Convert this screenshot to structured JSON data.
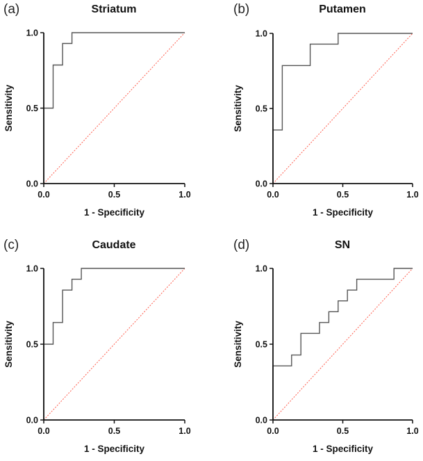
{
  "chart_data": [
    {
      "type": "line",
      "panel_label": "(a)",
      "title": "Striatum",
      "xlabel": "1 - Specificity",
      "ylabel": "Sensitivity",
      "xlim": [
        0,
        1
      ],
      "ylim": [
        0,
        1
      ],
      "xticks": [
        "0.0",
        "0.5",
        "1.0"
      ],
      "yticks": [
        "0.0",
        "0.5",
        "1.0"
      ],
      "series": [
        {
          "name": "ROC",
          "style": "step",
          "color": "#555555",
          "x": [
            0,
            0,
            0.0667,
            0.0667,
            0.1333,
            0.1333,
            0.2,
            0.2,
            1.0
          ],
          "y": [
            0,
            0.5,
            0.5,
            0.7857,
            0.7857,
            0.9286,
            0.9286,
            1.0,
            1.0
          ]
        },
        {
          "name": "Reference",
          "style": "dotted",
          "color": "#ff5a4a",
          "x": [
            0,
            1
          ],
          "y": [
            0,
            1
          ]
        }
      ]
    },
    {
      "type": "line",
      "panel_label": "(b)",
      "title": "Putamen",
      "xlabel": "1 - Specificity",
      "ylabel": "Sensitivity",
      "xlim": [
        0,
        1
      ],
      "ylim": [
        0,
        1
      ],
      "xticks": [
        "0.0",
        "0.5",
        "1.0"
      ],
      "yticks": [
        "0.0",
        "0.5",
        "1.0"
      ],
      "series": [
        {
          "name": "ROC",
          "style": "step",
          "color": "#555555",
          "x": [
            0,
            0,
            0.0667,
            0.0667,
            0.2667,
            0.2667,
            0.4667,
            0.4667,
            1.0
          ],
          "y": [
            0,
            0.3571,
            0.3571,
            0.7857,
            0.7857,
            0.9286,
            0.9286,
            1.0,
            1.0
          ]
        },
        {
          "name": "Reference",
          "style": "dotted",
          "color": "#ff5a4a",
          "x": [
            0,
            1
          ],
          "y": [
            0,
            1
          ]
        }
      ]
    },
    {
      "type": "line",
      "panel_label": "(c)",
      "title": "Caudate",
      "xlabel": "1 - Specificity",
      "ylabel": "Sensitivity",
      "xlim": [
        0,
        1
      ],
      "ylim": [
        0,
        1
      ],
      "xticks": [
        "0.0",
        "0.5",
        "1.0"
      ],
      "yticks": [
        "0.0",
        "0.5",
        "1.0"
      ],
      "series": [
        {
          "name": "ROC",
          "style": "step",
          "color": "#555555",
          "x": [
            0,
            0,
            0.0667,
            0.0667,
            0.1333,
            0.1333,
            0.2,
            0.2,
            0.2667,
            0.2667,
            1.0
          ],
          "y": [
            0,
            0.5,
            0.5,
            0.6429,
            0.6429,
            0.8571,
            0.8571,
            0.9286,
            0.9286,
            1.0,
            1.0
          ]
        },
        {
          "name": "Reference",
          "style": "dotted",
          "color": "#ff5a4a",
          "x": [
            0,
            1
          ],
          "y": [
            0,
            1
          ]
        }
      ]
    },
    {
      "type": "line",
      "panel_label": "(d)",
      "title": "SN",
      "xlabel": "1 - Specificity",
      "ylabel": "Sensitivity",
      "xlim": [
        0,
        1
      ],
      "ylim": [
        0,
        1
      ],
      "xticks": [
        "0.0",
        "0.5",
        "1.0"
      ],
      "yticks": [
        "0.0",
        "0.5",
        "1.0"
      ],
      "series": [
        {
          "name": "ROC",
          "style": "step",
          "color": "#555555",
          "x": [
            0,
            0,
            0.1333,
            0.1333,
            0.2,
            0.2,
            0.3333,
            0.3333,
            0.4,
            0.4,
            0.4667,
            0.4667,
            0.5333,
            0.5333,
            0.6,
            0.6,
            0.8667,
            0.8667,
            1.0
          ],
          "y": [
            0,
            0.3571,
            0.3571,
            0.4286,
            0.4286,
            0.5714,
            0.5714,
            0.6429,
            0.6429,
            0.7143,
            0.7143,
            0.7857,
            0.7857,
            0.8571,
            0.8571,
            0.9286,
            0.9286,
            1.0,
            1.0
          ]
        },
        {
          "name": "Reference",
          "style": "dotted",
          "color": "#ff5a4a",
          "x": [
            0,
            1
          ],
          "y": [
            0,
            1
          ]
        }
      ]
    }
  ]
}
